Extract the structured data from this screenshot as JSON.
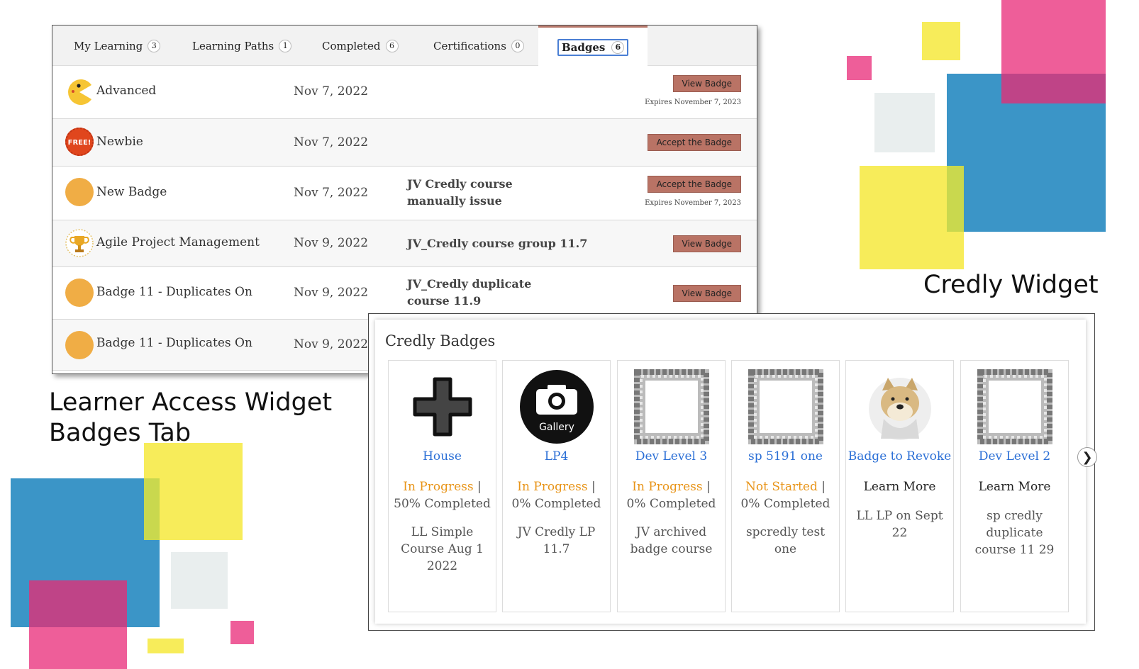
{
  "colors": {
    "blue": "#3b95c7",
    "yellow": "#f7ec5a",
    "pink": "#ee5e99",
    "gray": "#e9eeee",
    "button": "#b97365",
    "link": "#2b6fd6",
    "status_orange": "#e8951a"
  },
  "captions": {
    "learner_access_line1": "Learner Access Widget",
    "learner_access_line2": "Badges Tab",
    "credly_widget": "Credly Widget"
  },
  "learner_widget": {
    "tabs": [
      {
        "label": "My Learning",
        "count": "3"
      },
      {
        "label": "Learning Paths",
        "count": "1"
      },
      {
        "label": "Completed",
        "count": "6"
      },
      {
        "label": "Certifications",
        "count": "0"
      },
      {
        "label": "Badges",
        "count": "6",
        "active": true
      }
    ],
    "rows": [
      {
        "icon": "pacman-icon",
        "name": "Advanced",
        "date": "Nov 7, 2022",
        "course": "",
        "button": "View Badge",
        "expires": "Expires November 7, 2023"
      },
      {
        "icon": "free-sticker-icon",
        "icon_text": "FREE!",
        "name": "Newbie",
        "date": "Nov 7, 2022",
        "course": "",
        "button": "Accept the Badge",
        "expires": ""
      },
      {
        "icon": "orange-circle-icon",
        "name": "New Badge",
        "date": "Nov 7, 2022",
        "course": "JV Credly course manually issue",
        "button": "Accept the Badge",
        "expires": "Expires November 7, 2023"
      },
      {
        "icon": "trophy-icon",
        "name": "Agile Project Management",
        "date": "Nov 9, 2022",
        "course": "JV_Credly course group 11.7",
        "button": "View Badge",
        "expires": ""
      },
      {
        "icon": "orange-circle-icon",
        "name": "Badge 11 - Duplicates On",
        "date": "Nov 9, 2022",
        "course": "JV_Credly duplicate course 11.9",
        "button": "View Badge",
        "expires": ""
      },
      {
        "icon": "orange-circle-icon",
        "name": "Badge 11 - Duplicates On",
        "date": "Nov 9, 2022",
        "course": "",
        "button": "",
        "expires": ""
      }
    ]
  },
  "credly_widget": {
    "title": "Credly Badges",
    "cards": [
      {
        "icon": "plus-icon",
        "name": "House",
        "status": "In Progress",
        "status_sep": " | ",
        "status_rest": "50% Completed",
        "description": "LL Simple Course Aug 1 2022"
      },
      {
        "icon": "camera-icon",
        "icon_text": "Gallery",
        "name": "LP4",
        "status": "In Progress",
        "status_sep": " | ",
        "status_rest": "0% Completed",
        "description": "JV Credly LP 11.7"
      },
      {
        "icon": "floral-frame-icon",
        "name": "Dev Level 3",
        "status": "In Progress",
        "status_sep": " | ",
        "status_rest": "0% Completed",
        "description": "JV archived badge course"
      },
      {
        "icon": "floral-frame-icon",
        "name": "sp 5191 one",
        "status": "Not Started",
        "status_sep": " | ",
        "status_rest": "0% Completed",
        "description": "spcredly test one"
      },
      {
        "icon": "doge-icon",
        "name": "Badge to Revoke",
        "status": "",
        "status_sep": "",
        "status_rest": "Learn More",
        "description": "LL LP on Sept 22"
      },
      {
        "icon": "floral-frame-icon",
        "name": "Dev Level 2",
        "status": "",
        "status_sep": "",
        "status_rest": "Learn More",
        "description": "sp credly duplicate course 11 29"
      }
    ],
    "next_icon": "chevron-right-icon"
  }
}
